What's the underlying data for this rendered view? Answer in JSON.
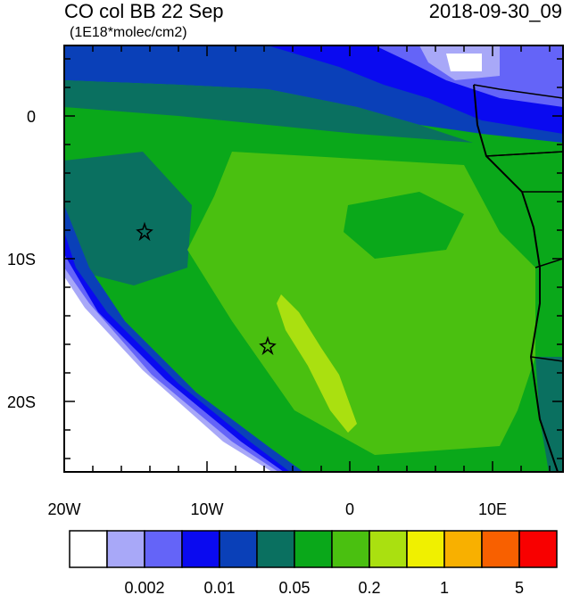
{
  "header": {
    "title": "CO col BB 22 Sep",
    "units": "(1E18*molec/cm2)",
    "timestamp": "2018-09-30_09"
  },
  "map": {
    "x_ticks": [
      "20W",
      "10W",
      "0",
      "10E"
    ],
    "y_ticks": [
      "0",
      "10S",
      "20S"
    ]
  },
  "colorbar": {
    "colors": [
      "#ffffff",
      "#a8a8f8",
      "#6464f8",
      "#0a0af0",
      "#0a40b8",
      "#0a7060",
      "#0aa81a",
      "#4ac010",
      "#aae010",
      "#f0f000",
      "#f8b000",
      "#f86000",
      "#f80000"
    ],
    "labels": [
      "0.002",
      "0.01",
      "0.05",
      "0.2",
      "1",
      "5"
    ]
  }
}
